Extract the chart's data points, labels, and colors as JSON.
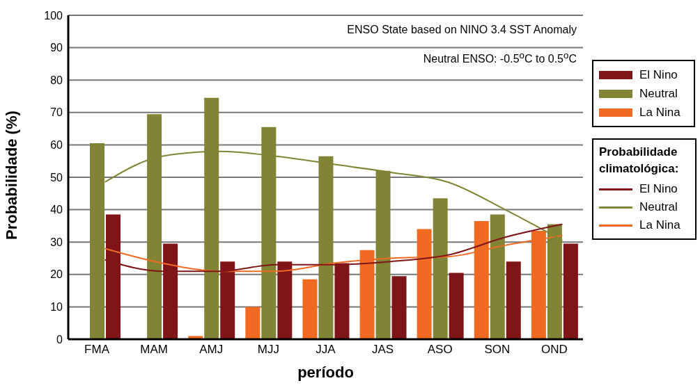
{
  "chart_data": {
    "type": "bar",
    "xlabel": "período",
    "ylabel": "Probabilidade (%)",
    "annotations": [
      "ENSO State based on NINO 3.4 SST Anomaly",
      "Neutral ENSO: -0.5$^{o}$C to 0.5$^{o}$C"
    ],
    "legend_title": "Probabilidade climatológica:",
    "categories": [
      "FMA",
      "MAM",
      "AMJ",
      "MJJ",
      "JJA",
      "JAS",
      "ASO",
      "SON",
      "OND"
    ],
    "series": [
      {
        "name": "La Nina",
        "color": "#f06a22",
        "values": [
          0,
          0,
          1,
          10,
          18.5,
          27.5,
          34,
          36.5,
          33.5
        ]
      },
      {
        "name": "Neutral",
        "color": "#818434",
        "values": [
          60.5,
          69.5,
          74.5,
          65.5,
          56.5,
          52,
          43.5,
          38.5,
          35.5
        ]
      },
      {
        "name": "El Nino",
        "color": "#7f1518",
        "values": [
          38.5,
          29.5,
          24,
          24,
          23.5,
          19.5,
          20.5,
          24,
          29.5
        ]
      },
      {
        "name": "La Nina",
        "type": "line",
        "color": "#f06a22",
        "values": [
          28,
          23.5,
          21,
          21,
          23.5,
          25,
          25.5,
          29,
          32
        ]
      },
      {
        "name": "Neutral",
        "type": "line",
        "color": "#818434",
        "values": [
          48.5,
          56.5,
          58,
          56.5,
          54,
          51.5,
          48.5,
          40,
          30.5
        ]
      },
      {
        "name": "El Nino",
        "type": "line",
        "color": "#7f1518",
        "values": [
          24.5,
          21,
          21,
          23,
          23,
          24,
          26,
          31.5,
          35.5
        ]
      }
    ],
    "ylim": [
      0,
      100
    ],
    "yticks": [
      0,
      10,
      20,
      30,
      40,
      50,
      60,
      70,
      80,
      90,
      100
    ],
    "grid": "y",
    "legend": "right",
    "marker": "none",
    "line_style": "solid"
  }
}
